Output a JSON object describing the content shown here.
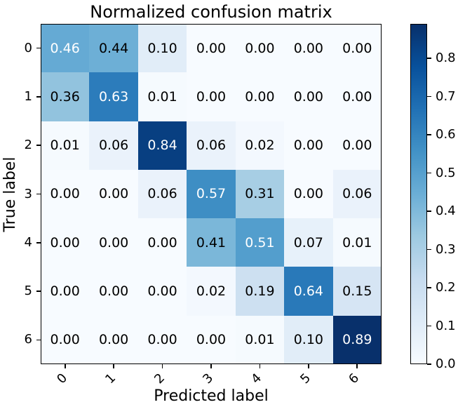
{
  "chart_data": {
    "type": "heatmap",
    "title": "Normalized confusion matrix",
    "xlabel": "Predicted label",
    "ylabel": "True label",
    "x_tick_labels": [
      "0",
      "1",
      "2",
      "3",
      "4",
      "5",
      "6"
    ],
    "y_tick_labels": [
      "0",
      "1",
      "2",
      "3",
      "4",
      "5",
      "6"
    ],
    "matrix": [
      [
        0.46,
        0.44,
        0.1,
        0.0,
        0.0,
        0.0,
        0.0
      ],
      [
        0.36,
        0.63,
        0.01,
        0.0,
        0.0,
        0.0,
        0.0
      ],
      [
        0.01,
        0.06,
        0.84,
        0.06,
        0.02,
        0.0,
        0.0
      ],
      [
        0.0,
        0.0,
        0.06,
        0.57,
        0.31,
        0.0,
        0.06
      ],
      [
        0.0,
        0.0,
        0.0,
        0.41,
        0.51,
        0.07,
        0.01
      ],
      [
        0.0,
        0.0,
        0.0,
        0.02,
        0.19,
        0.64,
        0.15
      ],
      [
        0.0,
        0.0,
        0.0,
        0.0,
        0.01,
        0.1,
        0.89
      ]
    ],
    "cell_value_decimals": 2,
    "vmin": 0.0,
    "vmax": 0.89,
    "grid": false,
    "colormap_name": "Blues",
    "colormap_anchors": [
      "#f7fbff",
      "#deebf7",
      "#c6dbef",
      "#9ecae1",
      "#6baed6",
      "#4292c6",
      "#2171b5",
      "#08519c",
      "#08306b"
    ],
    "cell_text_colors": {
      "light": "#ffffff",
      "dark": "#000000",
      "threshold": 0.445
    },
    "colorbar": {
      "position": "right",
      "tick_values": [
        0.0,
        0.1,
        0.2,
        0.3,
        0.4,
        0.5,
        0.6,
        0.7,
        0.8
      ],
      "tick_labels": [
        "0.0",
        "0.1",
        "0.2",
        "0.3",
        "0.4",
        "0.5",
        "0.6",
        "0.7",
        "0.8"
      ]
    }
  }
}
